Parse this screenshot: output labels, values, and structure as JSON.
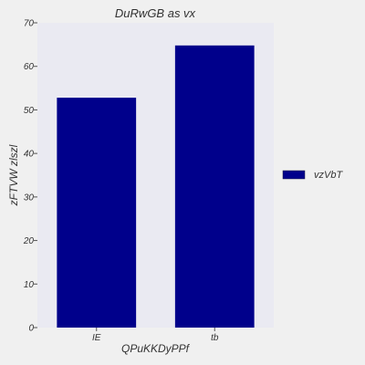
{
  "chart_data": {
    "type": "bar",
    "title": "DuRwGB as vx",
    "xlabel": "QPuKKDyPPf",
    "ylabel": "zFTVW  zlszl",
    "categories": [
      "IE",
      "tb"
    ],
    "series": [
      {
        "name": "vzVbT",
        "values": [
          52.8,
          64.8
        ],
        "color": "#00008b"
      }
    ],
    "ylim": [
      0,
      70
    ],
    "yticks": [
      0,
      10,
      20,
      30,
      40,
      50,
      60,
      70
    ],
    "yticks_labels": [
      "0",
      "10",
      "20",
      "30",
      "40",
      "50",
      "60",
      "70"
    ],
    "grid": false,
    "legend_position": "right",
    "plot_background": "#eaeaf2",
    "page_background": "#f0f0f0"
  }
}
